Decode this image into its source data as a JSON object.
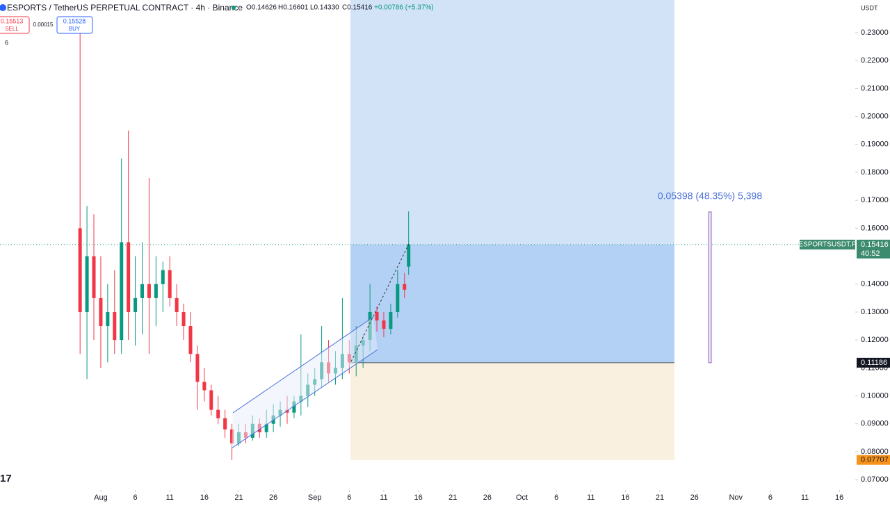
{
  "header": {
    "title": "ESPORTS / TetherUS PERPETUAL CONTRACT · 4h · Binance",
    "ohlc": [
      "O0.14626",
      "H0.16601",
      "L0.14330",
      "C0.15416",
      "+0.00786 (+5.37%)"
    ],
    "sell_price": "0.15513",
    "sell": "SELL",
    "spread": "0.00015",
    "buy_price": "0.15528",
    "buy": "BUY",
    "indicator_count": "6",
    "currency": "USDT",
    "logo": "17"
  },
  "chart_data": {
    "type": "candlestick",
    "x": [
      -3,
      -2,
      -1,
      0,
      1,
      2,
      3,
      4,
      5,
      6,
      7,
      8,
      9,
      10,
      11,
      12,
      13,
      14,
      15,
      16,
      17,
      18,
      19,
      20,
      21,
      22,
      23,
      24,
      25,
      26,
      27,
      28,
      29,
      30,
      31,
      32,
      33,
      34,
      35,
      36,
      37,
      38,
      39,
      40,
      41,
      42,
      43,
      44,
      44.6
    ],
    "open": [
      0.16,
      0.13,
      0.15,
      0.135,
      0.125,
      0.13,
      0.12,
      0.155,
      0.13,
      0.135,
      0.14,
      0.135,
      0.14,
      0.145,
      0.135,
      0.13,
      0.125,
      0.115,
      0.105,
      0.102,
      0.095,
      0.092,
      0.088,
      0.083,
      0.087,
      0.085,
      0.09,
      0.087,
      0.09,
      0.093,
      0.095,
      0.094,
      0.098,
      0.1,
      0.104,
      0.106,
      0.112,
      0.108,
      0.11,
      0.115,
      0.112,
      0.118,
      0.12,
      0.13,
      0.127,
      0.124,
      0.13,
      0.14,
      0.14626
    ],
    "high": [
      0.235,
      0.168,
      0.165,
      0.15,
      0.14,
      0.145,
      0.185,
      0.195,
      0.15,
      0.155,
      0.178,
      0.15,
      0.148,
      0.15,
      0.14,
      0.133,
      0.13,
      0.118,
      0.11,
      0.104,
      0.1,
      0.095,
      0.09,
      0.09,
      0.09,
      0.093,
      0.092,
      0.095,
      0.097,
      0.098,
      0.1,
      0.1,
      0.122,
      0.108,
      0.11,
      0.125,
      0.12,
      0.116,
      0.135,
      0.12,
      0.125,
      0.122,
      0.14,
      0.132,
      0.13,
      0.133,
      0.145,
      0.144,
      0.16601
    ],
    "low": [
      0.115,
      0.106,
      0.12,
      0.11,
      0.112,
      0.115,
      0.115,
      0.12,
      0.118,
      0.122,
      0.115,
      0.125,
      0.13,
      0.132,
      0.125,
      0.12,
      0.112,
      0.095,
      0.098,
      0.093,
      0.09,
      0.085,
      0.077,
      0.082,
      0.083,
      0.084,
      0.085,
      0.085,
      0.087,
      0.089,
      0.09,
      0.092,
      0.093,
      0.096,
      0.1,
      0.103,
      0.105,
      0.104,
      0.106,
      0.108,
      0.107,
      0.11,
      0.116,
      0.123,
      0.121,
      0.122,
      0.128,
      0.135,
      0.1433
    ],
    "close": [
      0.13,
      0.15,
      0.135,
      0.125,
      0.13,
      0.12,
      0.155,
      0.13,
      0.135,
      0.14,
      0.135,
      0.14,
      0.145,
      0.135,
      0.13,
      0.125,
      0.115,
      0.105,
      0.102,
      0.095,
      0.092,
      0.088,
      0.083,
      0.087,
      0.085,
      0.09,
      0.087,
      0.09,
      0.093,
      0.095,
      0.094,
      0.098,
      0.1,
      0.104,
      0.106,
      0.112,
      0.108,
      0.11,
      0.115,
      0.112,
      0.118,
      0.12,
      0.13,
      0.127,
      0.124,
      0.13,
      0.14,
      0.138,
      0.15416
    ],
    "up_color": "#089981",
    "down_color": "#f23645",
    "xlim": [
      -14.6,
      109.3
    ],
    "ylim": [
      0.0663,
      0.2417
    ],
    "xticks": [
      {
        "value": 0,
        "label": "Aug"
      },
      {
        "value": 5,
        "label": "6"
      },
      {
        "value": 10,
        "label": "11"
      },
      {
        "value": 15,
        "label": "16"
      },
      {
        "value": 20,
        "label": "21"
      },
      {
        "value": 25,
        "label": "26"
      },
      {
        "value": 31,
        "label": "Sep"
      },
      {
        "value": 36,
        "label": "6"
      },
      {
        "value": 41,
        "label": "11"
      },
      {
        "value": 46,
        "label": "16"
      },
      {
        "value": 51,
        "label": "21"
      },
      {
        "value": 56,
        "label": "26"
      },
      {
        "value": 61,
        "label": "Oct"
      },
      {
        "value": 66,
        "label": "6"
      },
      {
        "value": 71,
        "label": "11"
      },
      {
        "value": 76,
        "label": "16"
      },
      {
        "value": 81,
        "label": "21"
      },
      {
        "value": 86,
        "label": "26"
      },
      {
        "value": 92,
        "label": "Nov"
      },
      {
        "value": 97,
        "label": "6"
      },
      {
        "value": 102,
        "label": "11"
      },
      {
        "value": 107,
        "label": "16"
      }
    ],
    "yticks": [
      {
        "value": 0.23,
        "label": "0.23000"
      },
      {
        "value": 0.22,
        "label": "0.22000"
      },
      {
        "value": 0.21,
        "label": "0.21000"
      },
      {
        "value": 0.2,
        "label": "0.20000"
      },
      {
        "value": 0.19,
        "label": "0.19000"
      },
      {
        "value": 0.18,
        "label": "0.18000"
      },
      {
        "value": 0.17,
        "label": "0.17000"
      },
      {
        "value": 0.16,
        "label": "0.16000"
      },
      {
        "value": 0.14,
        "label": "0.14000"
      },
      {
        "value": 0.13,
        "label": "0.13000"
      },
      {
        "value": 0.12,
        "label": "0.12000"
      },
      {
        "value": 0.11,
        "label": "0.11000"
      },
      {
        "value": 0.1,
        "label": "0.10000"
      },
      {
        "value": 0.09,
        "label": "0.09000"
      },
      {
        "value": 0.08,
        "label": "0.08000"
      },
      {
        "value": 0.07,
        "label": "0.07000"
      }
    ],
    "current_price": {
      "symbol": "ESPORTSUSDT.P",
      "value": 0.15416,
      "label": "0.15416",
      "countdown": "40:52"
    },
    "entry": {
      "value": 0.11186,
      "label": "0.11186"
    },
    "stop": {
      "value": 0.07707,
      "label": "0.07707"
    },
    "measure": {
      "text": "0.05398 (48.35%) 5,398",
      "change": 0.05398
    }
  }
}
